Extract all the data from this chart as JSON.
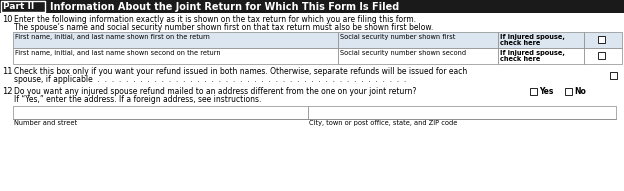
{
  "title": "Part II",
  "title_text": "Information About the Joint Return for Which This Form Is Filed",
  "bg_color": "#ffffff",
  "item10_instruction1": "Enter the following information exactly as it is shown on the tax return for which you are filing this form.",
  "item10_instruction2": "The spouse’s name and social security number shown first on that tax return must also be shown first below.",
  "row1_col1": "First name, initial, and last name shown first on the return",
  "row1_col2": "Social security number shown first",
  "row1_col3a": "If injured spouse,",
  "row1_col3b": "check here",
  "row2_col1": "First name, initial, and last name shown second on the return",
  "row2_col2": "Social security number shown second",
  "row2_col3a": "If injured spouse,",
  "row2_col3b": "check here",
  "item11_line1": "Check this box only if you want your refund issued in both names. Otherwise, separate refunds will be issued for each",
  "item11_line2": "spouse, if applicable",
  "item12_line1": "Do you want any injured spouse refund mailed to an address different from the one on your joint return?",
  "item12_line2": "If “Yes,” enter the address. If a foreign address, see instructions.",
  "yes_label": "Yes",
  "no_label": "No",
  "addr_col1": "Number and street",
  "addr_col2": "City, town or post office, state, and ZIP code",
  "table_bg1": "#dce6f1",
  "table_bg2": "#ffffff"
}
